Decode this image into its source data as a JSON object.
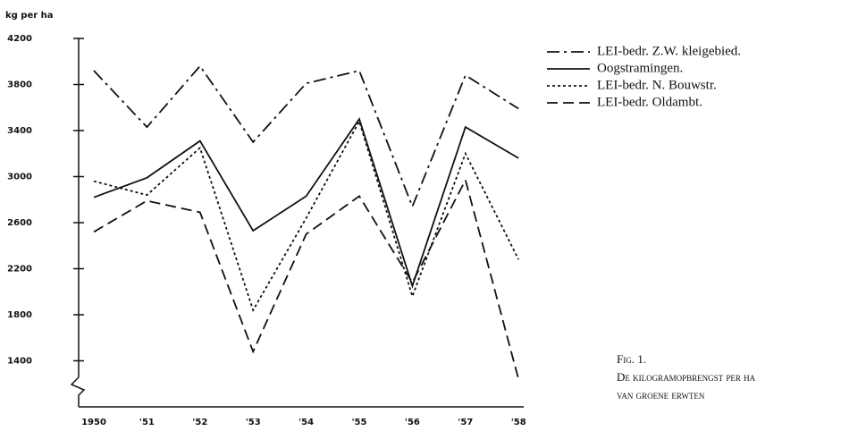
{
  "chart_data": {
    "type": "line",
    "y_label": "kg per ha",
    "categories": [
      "1950",
      "'51",
      "'52",
      "'53",
      "'54",
      "'55",
      "'56",
      "'57",
      "'58"
    ],
    "series": [
      {
        "name": "LEI-bedr. Z.W. kleigebied.",
        "color": "#111111",
        "dash": "14 5 3 5",
        "values": [
          3920,
          3430,
          3960,
          3300,
          3810,
          3920,
          2740,
          3880,
          3590
        ]
      },
      {
        "name": "Oogstramingen.",
        "color": "#111111",
        "dash": "none",
        "values": [
          2820,
          2990,
          3310,
          2530,
          2830,
          3500,
          2050,
          3430,
          3160
        ]
      },
      {
        "name": "LEI-bedr. N. Bouwstr.",
        "color": "#111111",
        "dash": "3 3",
        "values": [
          2960,
          2840,
          3250,
          1840,
          2640,
          3480,
          1960,
          3200,
          2280
        ]
      },
      {
        "name": "LEI-bedr. Oldambt.",
        "color": "#111111",
        "dash": "12 6",
        "values": [
          2520,
          2790,
          2690,
          1480,
          2500,
          2830,
          2080,
          2970,
          1240
        ]
      }
    ],
    "ylim": [
      1000,
      4200
    ],
    "yticks": [
      1400,
      1800,
      2200,
      2600,
      3000,
      3400,
      3800,
      4200
    ],
    "caption": [
      "Fig. 1.",
      "De kilogramopbrengst per ha",
      "van groene erwten"
    ]
  }
}
